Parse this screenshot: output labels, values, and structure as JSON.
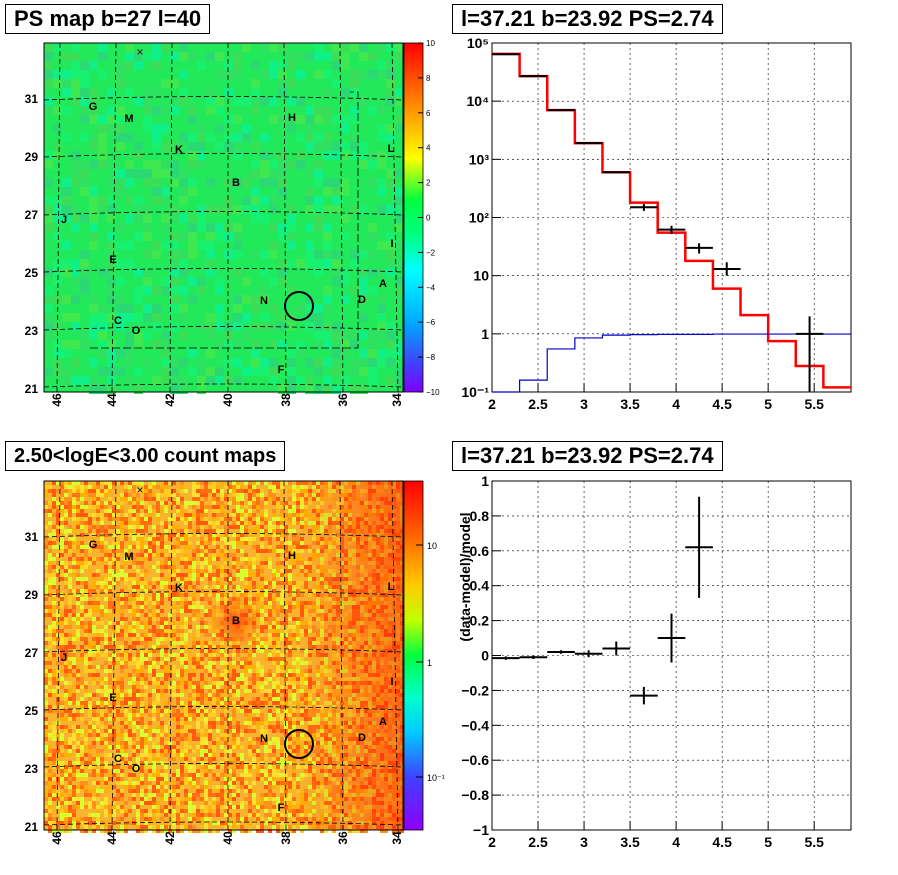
{
  "panels": {
    "top_left_title": "PS map b=27 l=40",
    "top_right_title": "l=37.21 b=23.92 PS=2.74",
    "bottom_left_title": "2.50<logE<3.00 count maps",
    "bottom_right_title": "l=37.21 b=23.92 PS=2.74"
  },
  "maps": {
    "x_ticks": [
      "46",
      "44",
      "42",
      "40",
      "38",
      "36",
      "34"
    ],
    "y_ticks": [
      "31",
      "29",
      "27",
      "25",
      "23",
      "21"
    ],
    "source_labels": [
      "G",
      "M",
      "H",
      "K",
      "L",
      "B",
      "J",
      "I",
      "E",
      "A",
      "N",
      "D",
      "C",
      "O",
      "F"
    ],
    "ps_colorbar_ticks": [
      "10",
      "8",
      "6",
      "4",
      "2",
      "0",
      "−2",
      "−4",
      "−6",
      "−8",
      "−10"
    ],
    "count_colorbar_ticks": [
      "10",
      "1",
      "10⁻¹"
    ],
    "marker": "×"
  },
  "chart_data": [
    {
      "type": "line",
      "panel": "spectrum",
      "title": "l=37.21 b=23.92 PS=2.74",
      "xlabel": "",
      "ylabel": "",
      "xlim": [
        2,
        5.9
      ],
      "ylim": [
        0.1,
        100000
      ],
      "yscale": "log",
      "x_tick_labels": [
        "2",
        "2.5",
        "3",
        "3.5",
        "4",
        "4.5",
        "5",
        "5.5"
      ],
      "y_tick_labels": [
        "10⁻¹",
        "1",
        "10",
        "10²",
        "10³",
        "10⁴",
        "10⁵"
      ],
      "series": [
        {
          "color": "#ff0000",
          "bin_edges": [
            2.0,
            2.3,
            2.6,
            2.9,
            3.2,
            3.5,
            3.8,
            4.1,
            4.4,
            4.7,
            5.0,
            5.3,
            5.6,
            5.9
          ],
          "values": [
            65000,
            27000,
            7000,
            1900,
            600,
            180,
            55,
            18,
            6,
            2.1,
            0.75,
            0.28,
            0.12
          ]
        },
        {
          "color": "#0000cc",
          "bin_edges": [
            2.0,
            2.3,
            2.6,
            2.9,
            3.2,
            3.5,
            3.8,
            4.1,
            4.4,
            4.7,
            5.0,
            5.3,
            5.6,
            5.9
          ],
          "values": [
            0.1,
            0.16,
            0.55,
            0.85,
            0.95,
            0.97,
            0.98,
            0.98,
            0.99,
            0.99,
            0.99,
            0.99,
            0.99
          ]
        },
        {
          "color": "#000000",
          "kind": "points",
          "x": [
            2.15,
            2.45,
            2.75,
            3.05,
            3.35,
            3.65,
            3.95,
            4.25,
            4.55,
            5.45
          ],
          "xerr": [
            0.15,
            0.15,
            0.15,
            0.15,
            0.15,
            0.15,
            0.15,
            0.15,
            0.15,
            0.15
          ],
          "y": [
            64000,
            27000,
            7000,
            1900,
            600,
            150,
            62,
            30,
            13,
            1
          ],
          "ylo": [
            62000,
            26000,
            6800,
            1850,
            580,
            130,
            52,
            24,
            10,
            0.1
          ],
          "yhi": [
            66000,
            28000,
            7200,
            1950,
            620,
            170,
            72,
            36,
            17,
            2
          ]
        }
      ]
    },
    {
      "type": "scatter",
      "panel": "residuals",
      "title": "l=37.21 b=23.92 PS=2.74",
      "xlabel": "",
      "ylabel": "(data-model)/model",
      "xlim": [
        2,
        5.9
      ],
      "ylim": [
        -1,
        1
      ],
      "x_tick_labels": [
        "2",
        "2.5",
        "3",
        "3.5",
        "4",
        "4.5",
        "5",
        "5.5"
      ],
      "y_tick_labels": [
        "1",
        "0.8",
        "0.6",
        "0.4",
        "0.2",
        "0",
        "−0.2",
        "−0.4",
        "−0.6",
        "−0.8",
        "−1"
      ],
      "series": [
        {
          "color": "#000000",
          "x": [
            2.15,
            2.45,
            2.75,
            3.05,
            3.35,
            3.65,
            3.95,
            4.25
          ],
          "xerr": [
            0.15,
            0.15,
            0.15,
            0.15,
            0.15,
            0.15,
            0.15,
            0.15
          ],
          "y": [
            -0.015,
            -0.01,
            0.02,
            0.01,
            0.04,
            -0.23,
            0.1,
            0.62
          ],
          "yerr": [
            0.01,
            0.01,
            0.01,
            0.02,
            0.04,
            0.05,
            0.14,
            0.29
          ]
        }
      ]
    }
  ]
}
